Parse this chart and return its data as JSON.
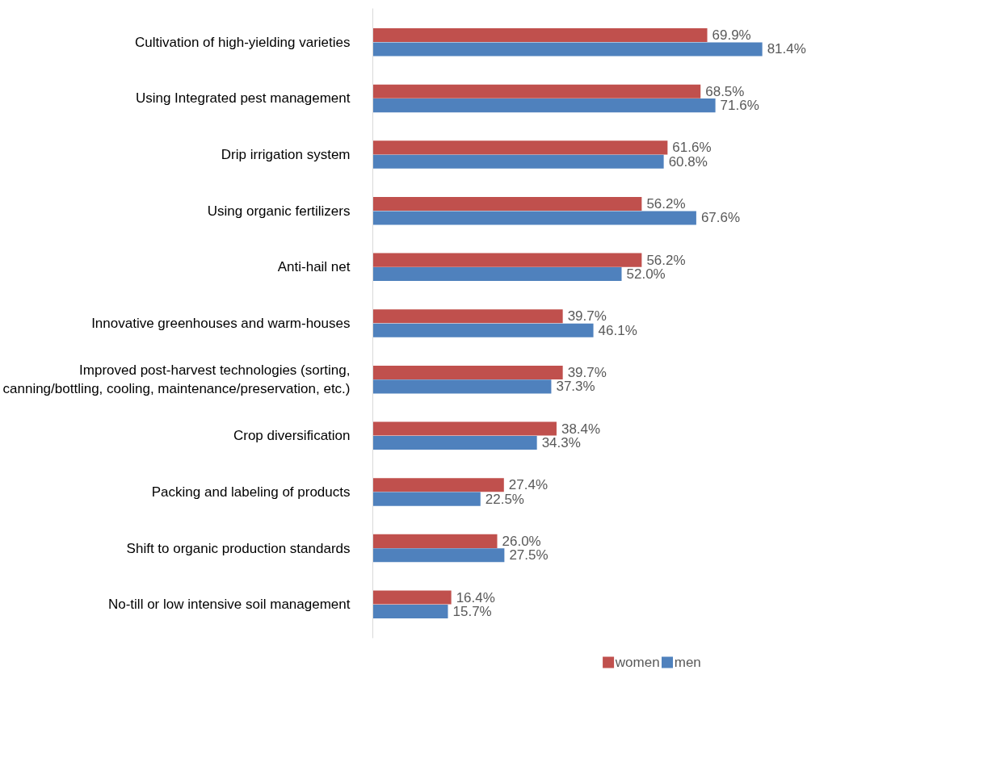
{
  "chart_data": {
    "type": "bar",
    "orientation": "horizontal",
    "categories": [
      "Cultivation of high-yielding varieties",
      "Using Integrated pest management",
      "Drip irrigation system",
      "Using organic fertilizers",
      "Anti-hail net",
      "Innovative greenhouses and warm-houses",
      "Improved post-harvest technologies (sorting, canning/bottling, cooling, maintenance/preservation, etc.)",
      "Crop diversification",
      "Packing and labeling of products",
      "Shift to organic production standards",
      "No-till or low intensive soil management"
    ],
    "series": [
      {
        "name": "women",
        "color": "#c0504d",
        "values": [
          69.9,
          68.5,
          61.6,
          56.2,
          56.2,
          39.7,
          39.7,
          38.4,
          27.4,
          26.0,
          16.4
        ],
        "value_labels": [
          "69.9%",
          "68.5%",
          "61.6%",
          "56.2%",
          "56.2%",
          "39.7%",
          "39.7%",
          "38.4%",
          "27.4%",
          "26.0%",
          "16.4%"
        ]
      },
      {
        "name": "men",
        "color": "#4f81bd",
        "values": [
          81.4,
          71.6,
          60.8,
          67.6,
          52.0,
          46.1,
          37.3,
          34.3,
          22.5,
          27.5,
          15.7
        ],
        "value_labels": [
          "81.4%",
          "71.6%",
          "60.8%",
          "67.6%",
          "52.0%",
          "46.1%",
          "37.3%",
          "34.3%",
          "22.5%",
          "27.5%",
          "15.7%"
        ]
      }
    ],
    "tick_labels": "y",
    "grid": false,
    "legend": "bottom"
  }
}
